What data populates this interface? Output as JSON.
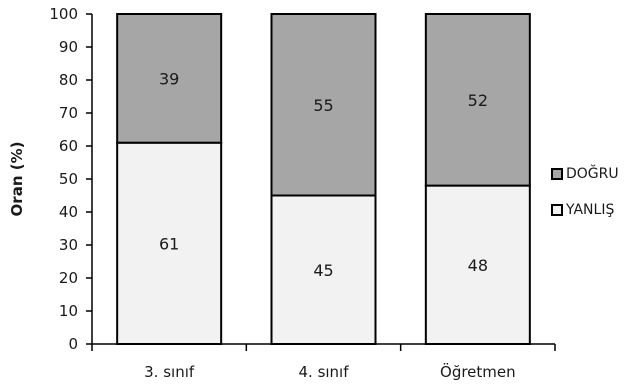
{
  "chart_data": {
    "type": "bar",
    "stacked": true,
    "categories": [
      "3. sınıf",
      "4. sınıf",
      "Öğretmen"
    ],
    "series": [
      {
        "name": "YANLIŞ",
        "values": [
          61,
          45,
          48
        ],
        "color": "#f2f2f2"
      },
      {
        "name": "DOĞRU",
        "values": [
          39,
          55,
          52
        ],
        "color": "#a6a6a6"
      }
    ],
    "ylabel": "Oran (%)",
    "ylim": [
      0,
      100
    ],
    "yticks": [
      0,
      10,
      20,
      30,
      40,
      50,
      60,
      70,
      80,
      90,
      100
    ],
    "grid": false,
    "legend_position": "right",
    "legend": [
      "DOĞRU",
      "YANLIŞ"
    ]
  },
  "colors": {
    "bar_outline": "#000000",
    "axis": "#000000"
  }
}
